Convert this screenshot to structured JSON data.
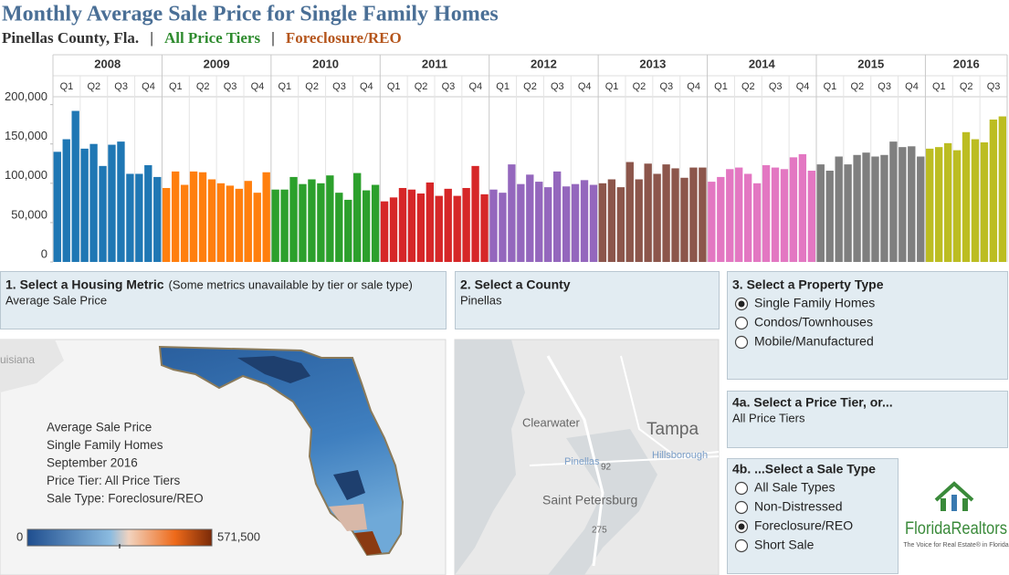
{
  "header": {
    "title": "Monthly Average Sale Price for Single Family Homes",
    "subtitle": [
      {
        "text": "Pinellas County, Fla.",
        "color": "#333333"
      },
      {
        "text": "|",
        "color": "#333333"
      },
      {
        "text": "All Price Tiers",
        "color": "#2e8b2e"
      },
      {
        "text": "|",
        "color": "#333333"
      },
      {
        "text": "Foreclosure/REO",
        "color": "#b5561d"
      }
    ]
  },
  "chart_data": {
    "type": "bar",
    "quarters": [
      "Q1",
      "Q2",
      "Q3",
      "Q4"
    ],
    "ylim": [
      0,
      210000
    ],
    "yticks": [
      0,
      {
        "value": 50000,
        "label": "50,000"
      },
      {
        "value": 100000,
        "label": "100,000"
      },
      {
        "value": 150000,
        "label": "150,000"
      },
      {
        "value": 200000,
        "label": "200,000"
      }
    ],
    "series": [
      {
        "name": "2008",
        "color": "#1f77b4",
        "values": [
          140000,
          156000,
          192000,
          144000,
          150000,
          122000,
          149000,
          153000,
          112000,
          112000,
          123000,
          108000
        ]
      },
      {
        "name": "2009",
        "color": "#ff7f0e",
        "values": [
          94000,
          115000,
          98000,
          115000,
          114000,
          105000,
          100000,
          97000,
          93000,
          103000,
          88000,
          114000
        ]
      },
      {
        "name": "2010",
        "color": "#2ca02c",
        "values": [
          92000,
          92000,
          108000,
          99000,
          105000,
          100000,
          110000,
          88000,
          79000,
          113000,
          91000,
          98000
        ]
      },
      {
        "name": "2011",
        "color": "#d62728",
        "values": [
          77000,
          82000,
          94000,
          92000,
          87000,
          101000,
          84000,
          93000,
          84000,
          94000,
          122000,
          86000
        ]
      },
      {
        "name": "2012",
        "color": "#9467bd",
        "values": [
          92000,
          88000,
          124000,
          99000,
          111000,
          102000,
          95000,
          115000,
          96000,
          99000,
          104000,
          98000
        ]
      },
      {
        "name": "2013",
        "color": "#8c564b",
        "values": [
          100000,
          105000,
          95000,
          127000,
          105000,
          125000,
          112000,
          124000,
          119000,
          107000,
          120000,
          120000
        ]
      },
      {
        "name": "2014",
        "color": "#e377c2",
        "values": [
          102000,
          108000,
          118000,
          120000,
          112000,
          100000,
          123000,
          120000,
          118000,
          133000,
          137000,
          116000
        ]
      },
      {
        "name": "2015",
        "color": "#7f7f7f",
        "values": [
          124000,
          116000,
          134000,
          124000,
          136000,
          139000,
          134000,
          136000,
          153000,
          146000,
          147000,
          134000
        ]
      },
      {
        "name": "2016",
        "color": "#bcbd22",
        "values": [
          144000,
          146000,
          151000,
          142000,
          165000,
          156000,
          152000,
          181000,
          185000
        ]
      }
    ]
  },
  "panels": {
    "metric": {
      "title": "1. Select a Housing Metric",
      "note": "(Some metrics unavailable by tier or sale type)",
      "value": "Average Sale Price"
    },
    "county": {
      "title": "2. Select a County",
      "value": "Pinellas"
    },
    "property": {
      "title": "3. Select a Property Type",
      "selected": 0,
      "options": [
        "Single Family Homes",
        "Condos/Townhouses",
        "Mobile/Manufactured"
      ]
    },
    "tier": {
      "title": "4a. Select a Price Tier, or...",
      "value": "All Price Tiers"
    },
    "sale": {
      "title": "4b. ...Select a Sale Type",
      "selected": 2,
      "options": [
        "All Sale Types",
        "Non-Distressed",
        "Foreclosure/REO",
        "Short Sale"
      ]
    }
  },
  "map": {
    "info": [
      "Average Sale Price",
      "Single Family Homes",
      "September 2016",
      "Price Tier: All Price Tiers",
      "Sale Type: Foreclosure/REO"
    ],
    "legend": [
      0,
      {
        "value": 571500,
        "label": "571,500"
      }
    ],
    "region_label": "uisiana"
  },
  "street_map": {
    "labels": [
      {
        "text": "Clearwater",
        "size": 13
      },
      {
        "text": "Tampa",
        "size": 19
      },
      {
        "text": "Hillsborough",
        "size": 11
      },
      {
        "text": "Pinellas",
        "size": 11
      },
      {
        "text": "92",
        "size": 10
      },
      {
        "text": "Saint Petersburg",
        "size": 14
      },
      {
        "text": "275",
        "size": 10
      }
    ]
  },
  "logo": {
    "name": "FloridaRealtors",
    "tagline": "The Voice for Real Estate® in Florida"
  }
}
